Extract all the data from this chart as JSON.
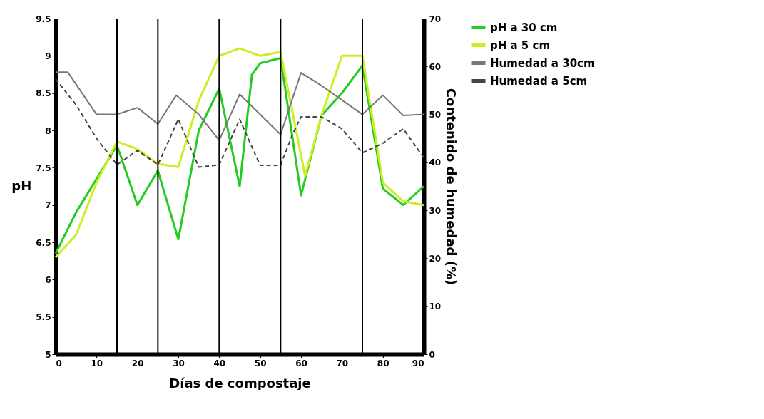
{
  "chart_data": {
    "type": "line",
    "xlabel": "Días de compostaje",
    "ylabel": "pH",
    "y2label": "Contenido de humedad (%)",
    "xlim": [
      0,
      90
    ],
    "xticks": [
      0,
      10,
      20,
      30,
      40,
      50,
      60,
      70,
      80,
      90
    ],
    "ylim": [
      5,
      9.5
    ],
    "yticks": [
      5,
      5.5,
      6,
      6.5,
      7,
      7.5,
      8,
      8.5,
      9,
      9.5
    ],
    "y2lim": [
      0,
      70
    ],
    "y2ticks": [
      0,
      10,
      20,
      30,
      40,
      50,
      60,
      70
    ],
    "grid": false,
    "legend": "right",
    "marker": "none",
    "ref_lines": [
      {
        "axis": "x",
        "value": 15,
        "color": "#000000"
      },
      {
        "axis": "x",
        "value": 25,
        "color": "#000000"
      },
      {
        "axis": "x",
        "value": 40,
        "color": "#000000"
      },
      {
        "axis": "x",
        "value": 55,
        "color": "#000000"
      },
      {
        "axis": "x",
        "value": 75,
        "color": "#000000"
      }
    ],
    "series": [
      {
        "name": "pH a 30 cm",
        "color": "#22cc22",
        "line_style": "solid",
        "x": [
          0,
          5,
          10,
          15,
          20,
          25,
          30,
          35,
          40,
          45,
          48,
          50,
          55,
          60,
          65,
          70,
          75,
          80,
          85,
          90
        ],
        "values": [
          6.35,
          6.9,
          7.35,
          7.8,
          7.0,
          7.46,
          6.54,
          8.0,
          8.56,
          7.25,
          8.75,
          8.9,
          8.97,
          7.13,
          8.2,
          8.5,
          8.87,
          7.22,
          7.0,
          7.25
        ]
      },
      {
        "name": "pH a 5 cm",
        "color": "#ccee22",
        "line_style": "solid",
        "x": [
          0,
          5,
          10,
          15,
          20,
          25,
          30,
          35,
          40,
          45,
          50,
          55,
          61,
          65,
          70,
          75,
          80,
          85,
          90
        ],
        "values": [
          6.3,
          6.6,
          7.3,
          7.85,
          7.75,
          7.55,
          7.51,
          8.4,
          9.0,
          9.1,
          9.0,
          9.05,
          7.39,
          8.2,
          9.0,
          9.0,
          7.3,
          7.05,
          7.0
        ]
      },
      {
        "name": "Humedad a 30cm",
        "color": "#777777",
        "line_style": "solid",
        "axis": "y2",
        "x": [
          0,
          3,
          10,
          15,
          20,
          25,
          29.5,
          35,
          40,
          45,
          50,
          55,
          60,
          65,
          70,
          75,
          80,
          85,
          90
        ],
        "values": [
          58.8,
          58.8,
          50,
          50,
          51.4,
          48,
          54,
          50,
          44.6,
          54.2,
          50,
          45.8,
          58.7,
          56,
          53,
          50,
          54,
          49.8,
          50
        ]
      },
      {
        "name": "Humedad a 5cm",
        "color": "#444444",
        "line_style": "dashed",
        "axis": "y2",
        "x": [
          0,
          5,
          10,
          15,
          20,
          25,
          30,
          35,
          40,
          45,
          50,
          55,
          58,
          60,
          65,
          70,
          75,
          80,
          85,
          90
        ],
        "values": [
          57.4,
          52,
          45,
          39.5,
          42.5,
          39.5,
          49,
          39,
          39.5,
          49,
          39.4,
          39.4,
          46,
          49.5,
          49.5,
          47,
          42,
          44,
          47,
          41
        ]
      }
    ]
  }
}
